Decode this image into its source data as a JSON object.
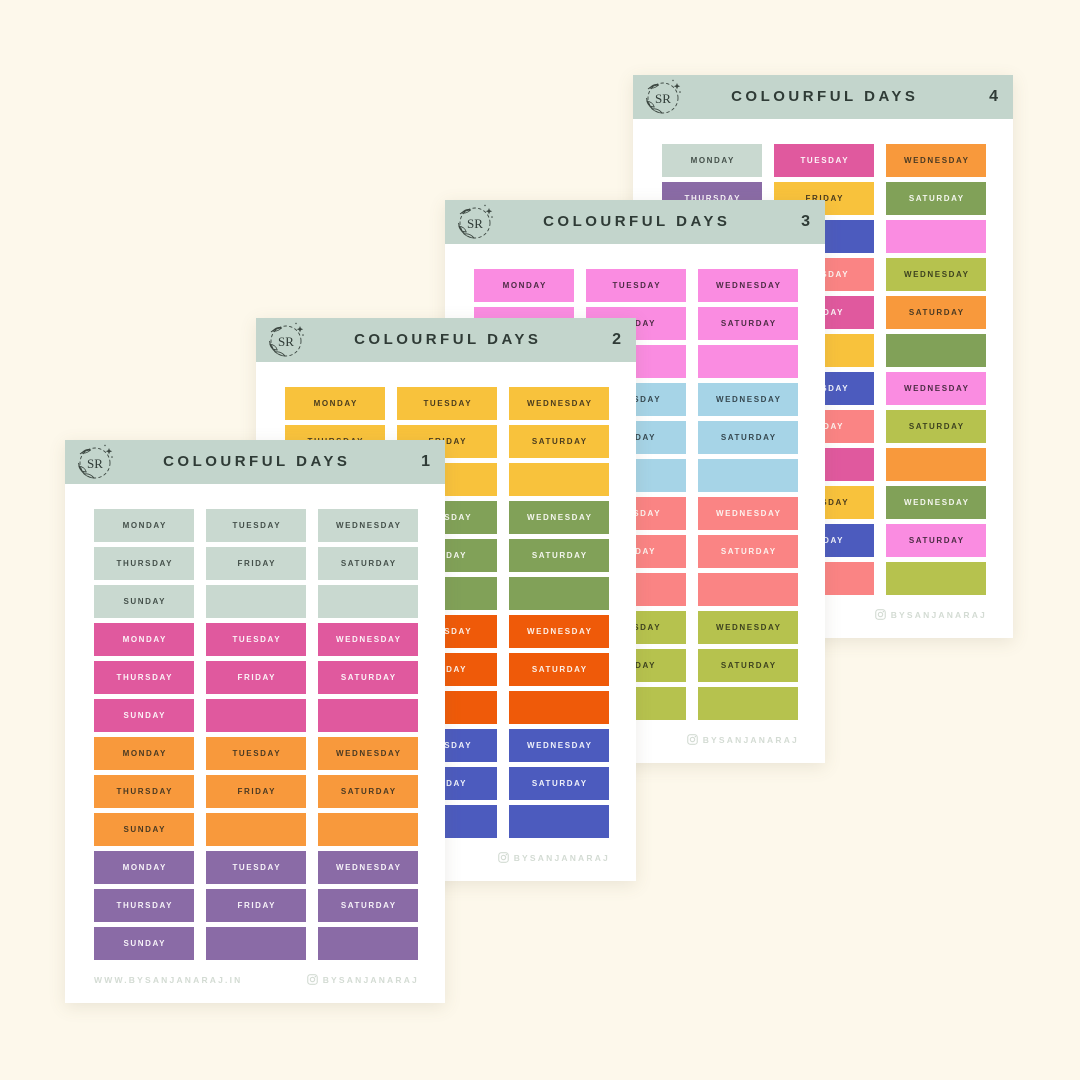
{
  "page": {
    "background_color": "#FDF8EB"
  },
  "brand": {
    "logo_monogram": "SR",
    "website": "WWW.BYSANJANARAJ.IN",
    "instagram_handle": "BYSANJANARAJ"
  },
  "sheet_title": "COLOURFUL DAYS",
  "header": {
    "bar_color": "#C3D5CC",
    "text_color": "#2F3B36"
  },
  "footer": {
    "text_color": "#D3DBD3"
  },
  "label_rows": [
    [
      "MONDAY",
      "TUESDAY",
      "WEDNESDAY"
    ],
    [
      "THURSDAY",
      "FRIDAY",
      "SATURDAY"
    ],
    [
      "SUNDAY",
      "",
      ""
    ]
  ],
  "row_sets_per_sheet": 4,
  "columns_per_row": 3,
  "palette": {
    "sage": {
      "bg": "#C9D9D0",
      "text": "#44504A"
    },
    "deep_pink": {
      "bg": "#E0599E",
      "text": "#FBF3F7"
    },
    "orange": {
      "bg": "#F8993C",
      "text": "#4A3A23"
    },
    "purple": {
      "bg": "#8A6BA6",
      "text": "#F6F2F8"
    },
    "yellow": {
      "bg": "#F8C23C",
      "text": "#4A3C1E"
    },
    "green": {
      "bg": "#81A158",
      "text": "#F4F6EE"
    },
    "vivid_orange": {
      "bg": "#EF5A09",
      "text": "#FCF0E8"
    },
    "blue": {
      "bg": "#4C5BBE",
      "text": "#EFF1FA"
    },
    "bright_pink": {
      "bg": "#FA8CE1",
      "text": "#4C2C44"
    },
    "light_blue": {
      "bg": "#A6D4E7",
      "text": "#364850"
    },
    "salmon": {
      "bg": "#FA8484",
      "text": "#FCF2EE"
    },
    "olive": {
      "bg": "#B6C24E",
      "text": "#3D421F"
    }
  },
  "sheets": [
    {
      "number": "1",
      "mode": "group",
      "group_colors": [
        "sage",
        "deep_pink",
        "orange",
        "purple"
      ]
    },
    {
      "number": "2",
      "mode": "group",
      "group_colors": [
        "yellow",
        "green",
        "vivid_orange",
        "blue"
      ]
    },
    {
      "number": "3",
      "mode": "group",
      "group_colors": [
        "bright_pink",
        "light_blue",
        "salmon",
        "olive"
      ]
    },
    {
      "number": "4",
      "mode": "cycle",
      "color_cycle": [
        "sage",
        "deep_pink",
        "orange",
        "purple",
        "yellow",
        "green",
        "vivid_orange",
        "blue",
        "bright_pink",
        "light_blue",
        "salmon",
        "olive"
      ]
    }
  ]
}
